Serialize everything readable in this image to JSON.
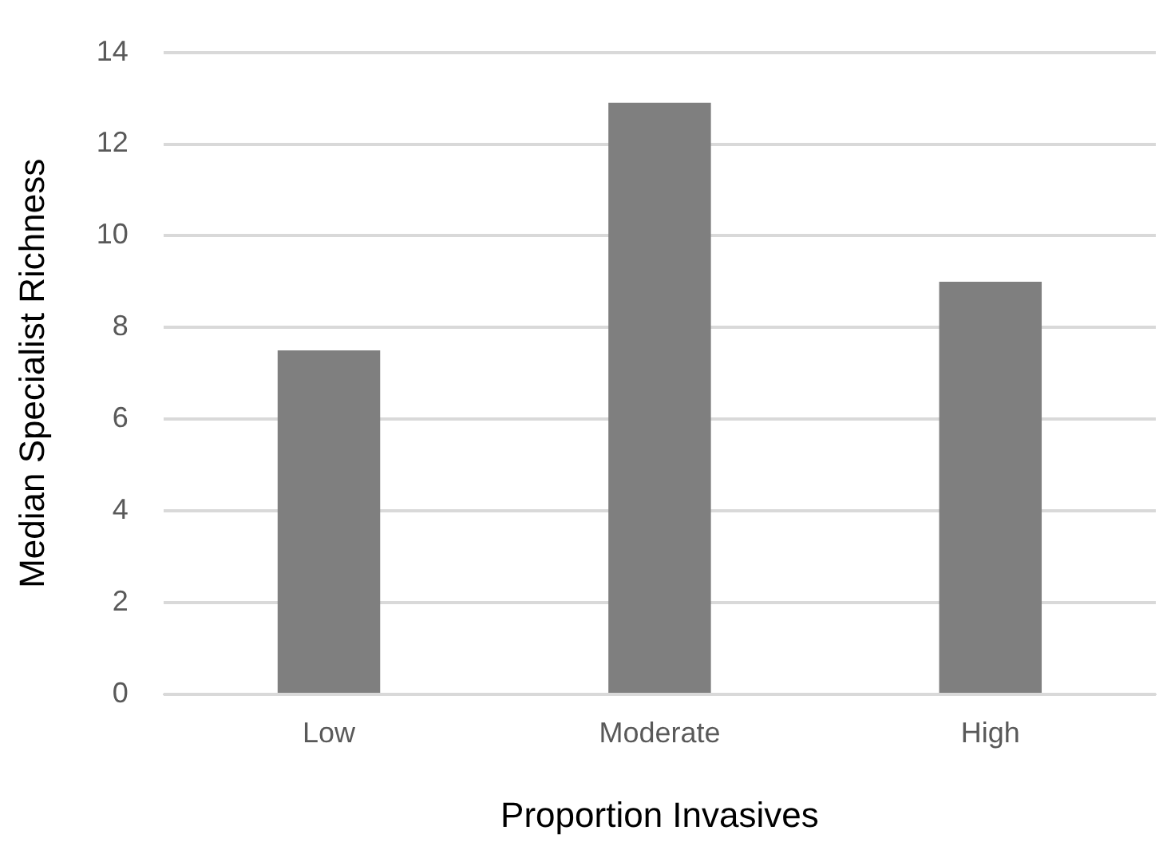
{
  "chart_data": {
    "type": "bar",
    "xlabel": "Proportion Invasives",
    "ylabel": "Median Specialist Richness",
    "categories": [
      "Low",
      "Moderate",
      "High"
    ],
    "values": [
      7.5,
      12.9,
      9
    ],
    "color": "#7f7f7f",
    "ylim": [
      0,
      14
    ],
    "yticks": [
      0,
      2,
      4,
      6,
      8,
      10,
      12,
      14
    ],
    "grid": "y",
    "legend": false
  }
}
